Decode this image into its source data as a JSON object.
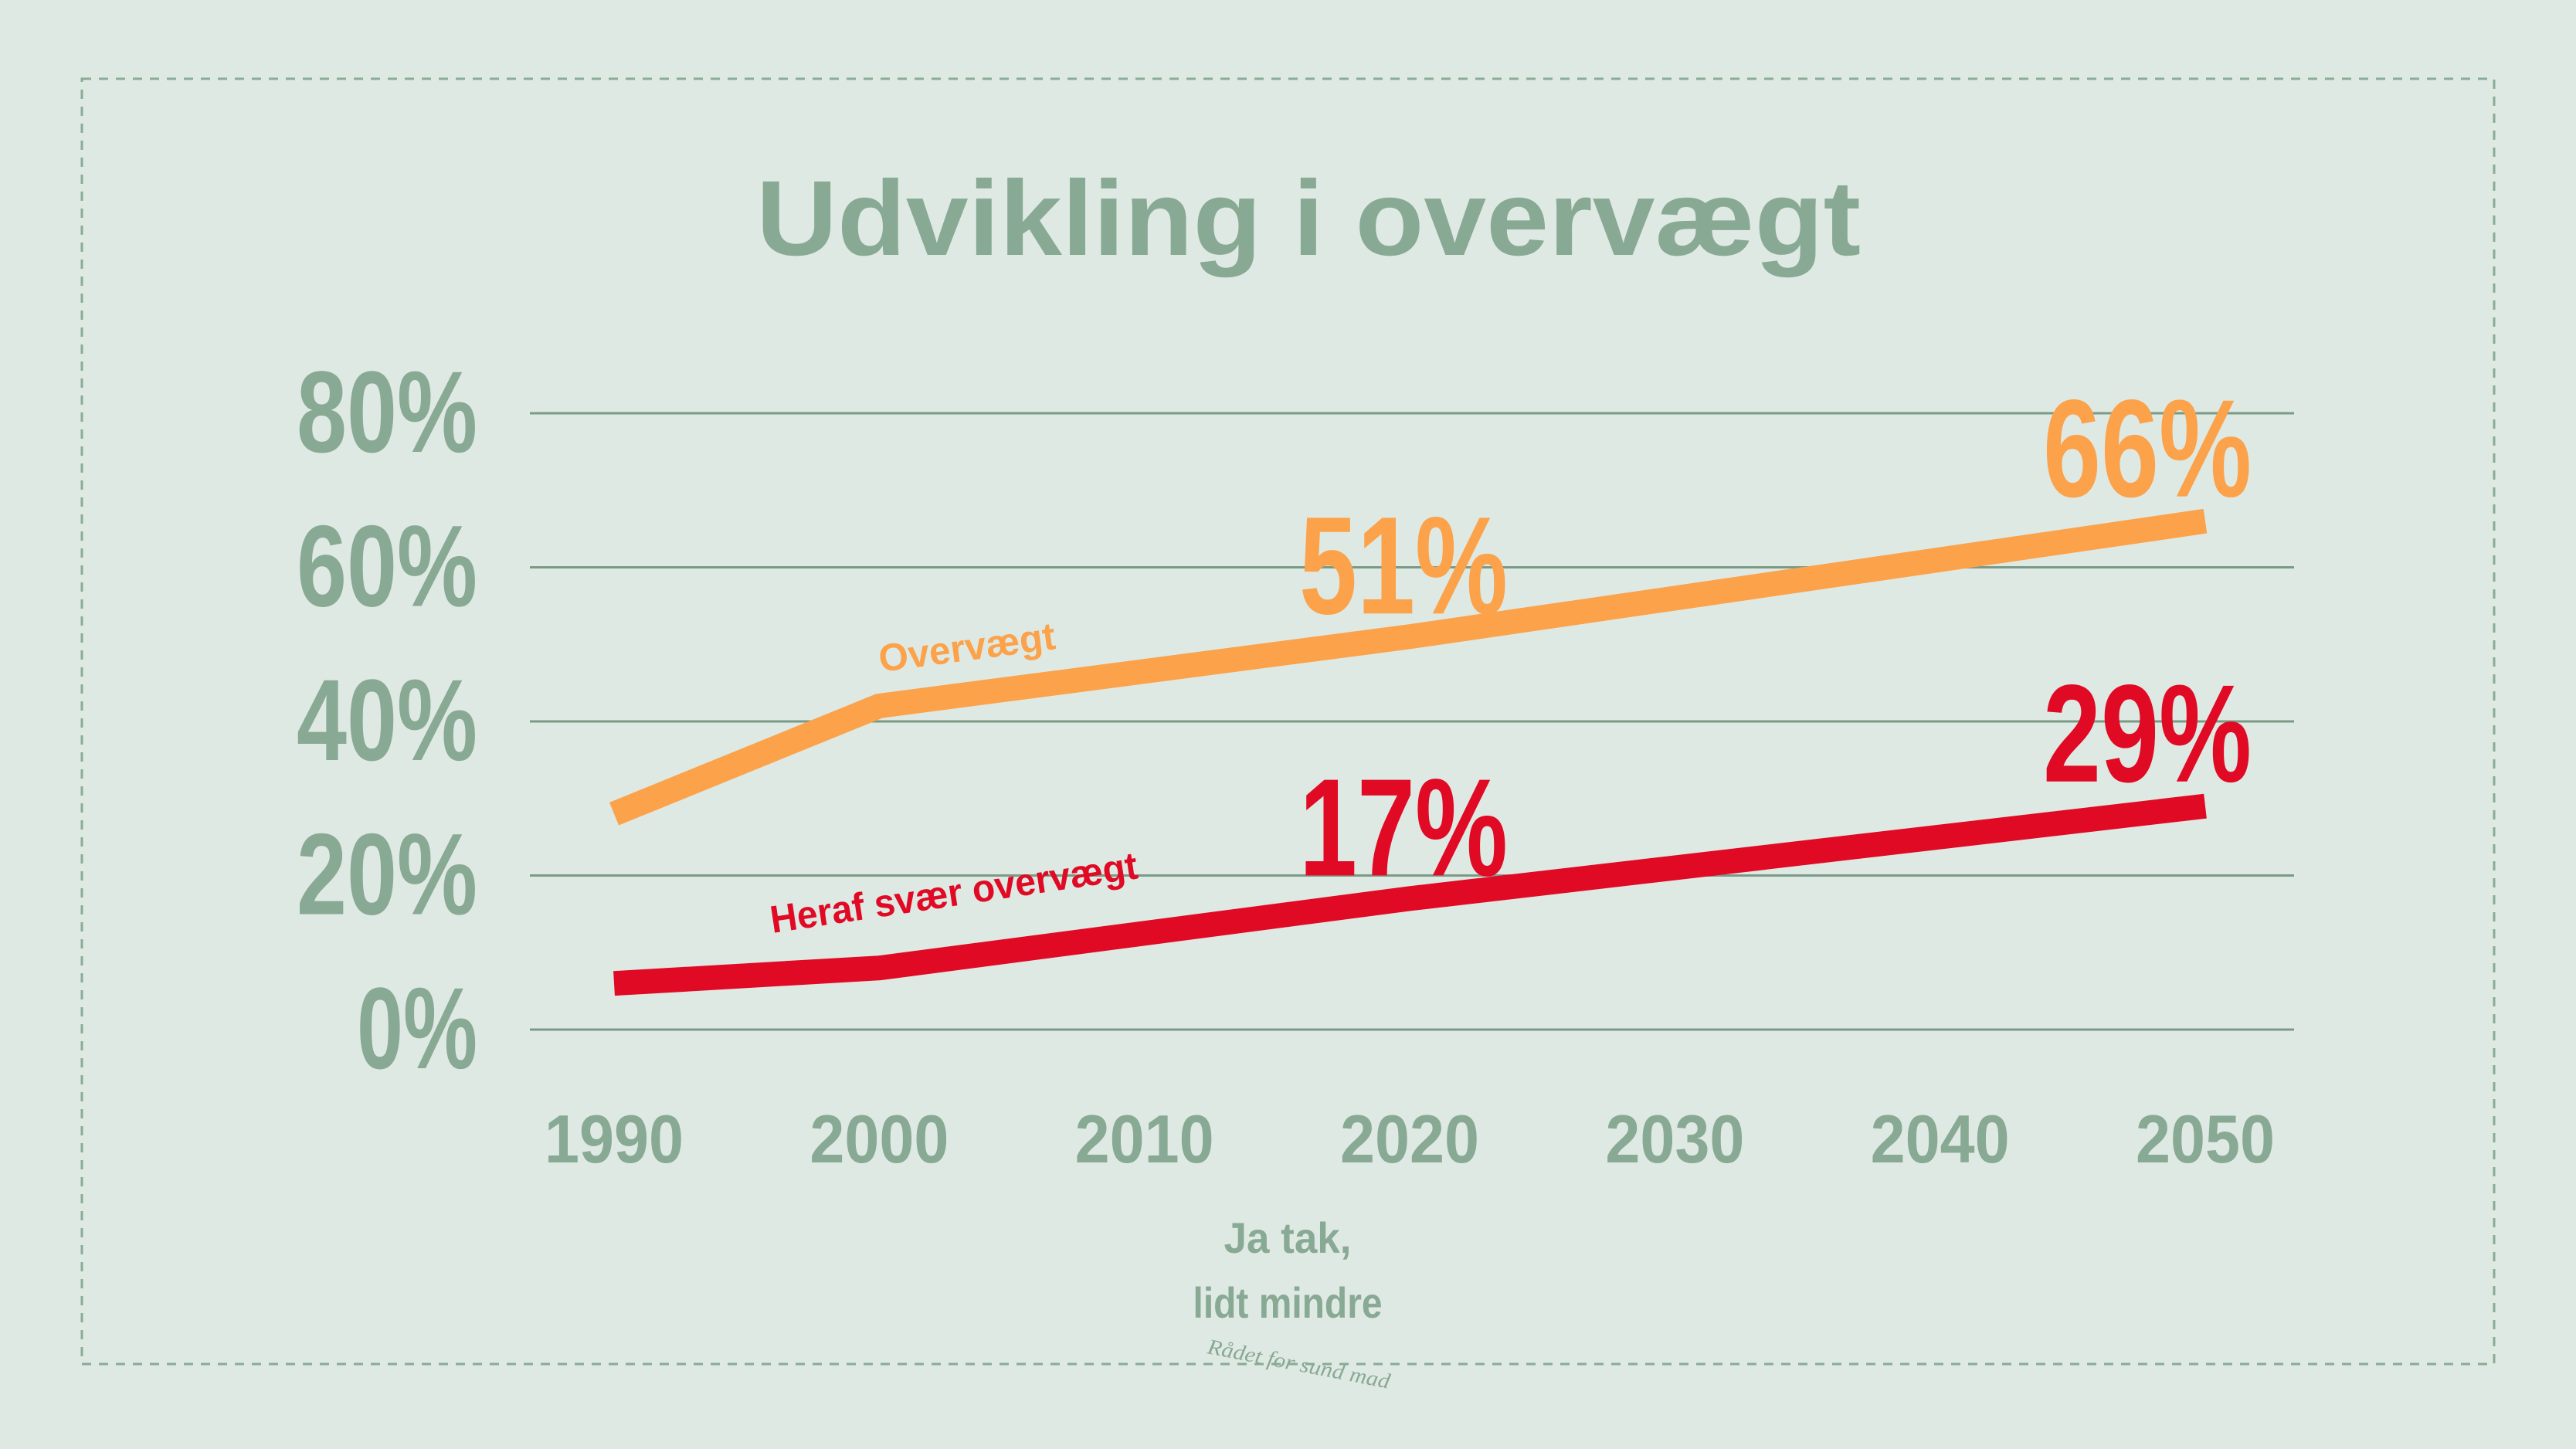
{
  "colors": {
    "background": "#dfe9e3",
    "frame": "#8aab95",
    "text_green": "#88a993",
    "grid": "#7a9a86",
    "orange": "#fba24b",
    "red": "#e00a25"
  },
  "chart_data": {
    "type": "line",
    "title": "Udvikling i overvægt",
    "x": [
      1990,
      2000,
      2020,
      2050
    ],
    "x_ticks": [
      "1990",
      "2000",
      "2010",
      "2020",
      "2030",
      "2040",
      "2050"
    ],
    "y_ticks": [
      "80%",
      "60%",
      "40%",
      "20%",
      "0%"
    ],
    "xlim": [
      1990,
      2050
    ],
    "ylim": [
      0,
      80
    ],
    "y_unit": "%",
    "grid": true,
    "series": [
      {
        "name": "Overvægt",
        "color": "#fba24b",
        "points": [
          [
            1990,
            28
          ],
          [
            2000,
            42
          ],
          [
            2020,
            51
          ],
          [
            2050,
            66
          ]
        ],
        "labels": [
          {
            "x": 2020,
            "text": "51%"
          },
          {
            "x": 2050,
            "text": "66%"
          }
        ]
      },
      {
        "name": "Heraf svær overvægt",
        "color": "#e00a25",
        "points": [
          [
            1990,
            6
          ],
          [
            2000,
            8
          ],
          [
            2020,
            17
          ],
          [
            2050,
            29
          ]
        ],
        "labels": [
          {
            "x": 2020,
            "text": "17%"
          },
          {
            "x": 2050,
            "text": "29%"
          }
        ]
      }
    ]
  },
  "logo": {
    "line1": "Ja tak,",
    "line2": "lidt mindre",
    "tagline": "Rådet for sund mad"
  }
}
